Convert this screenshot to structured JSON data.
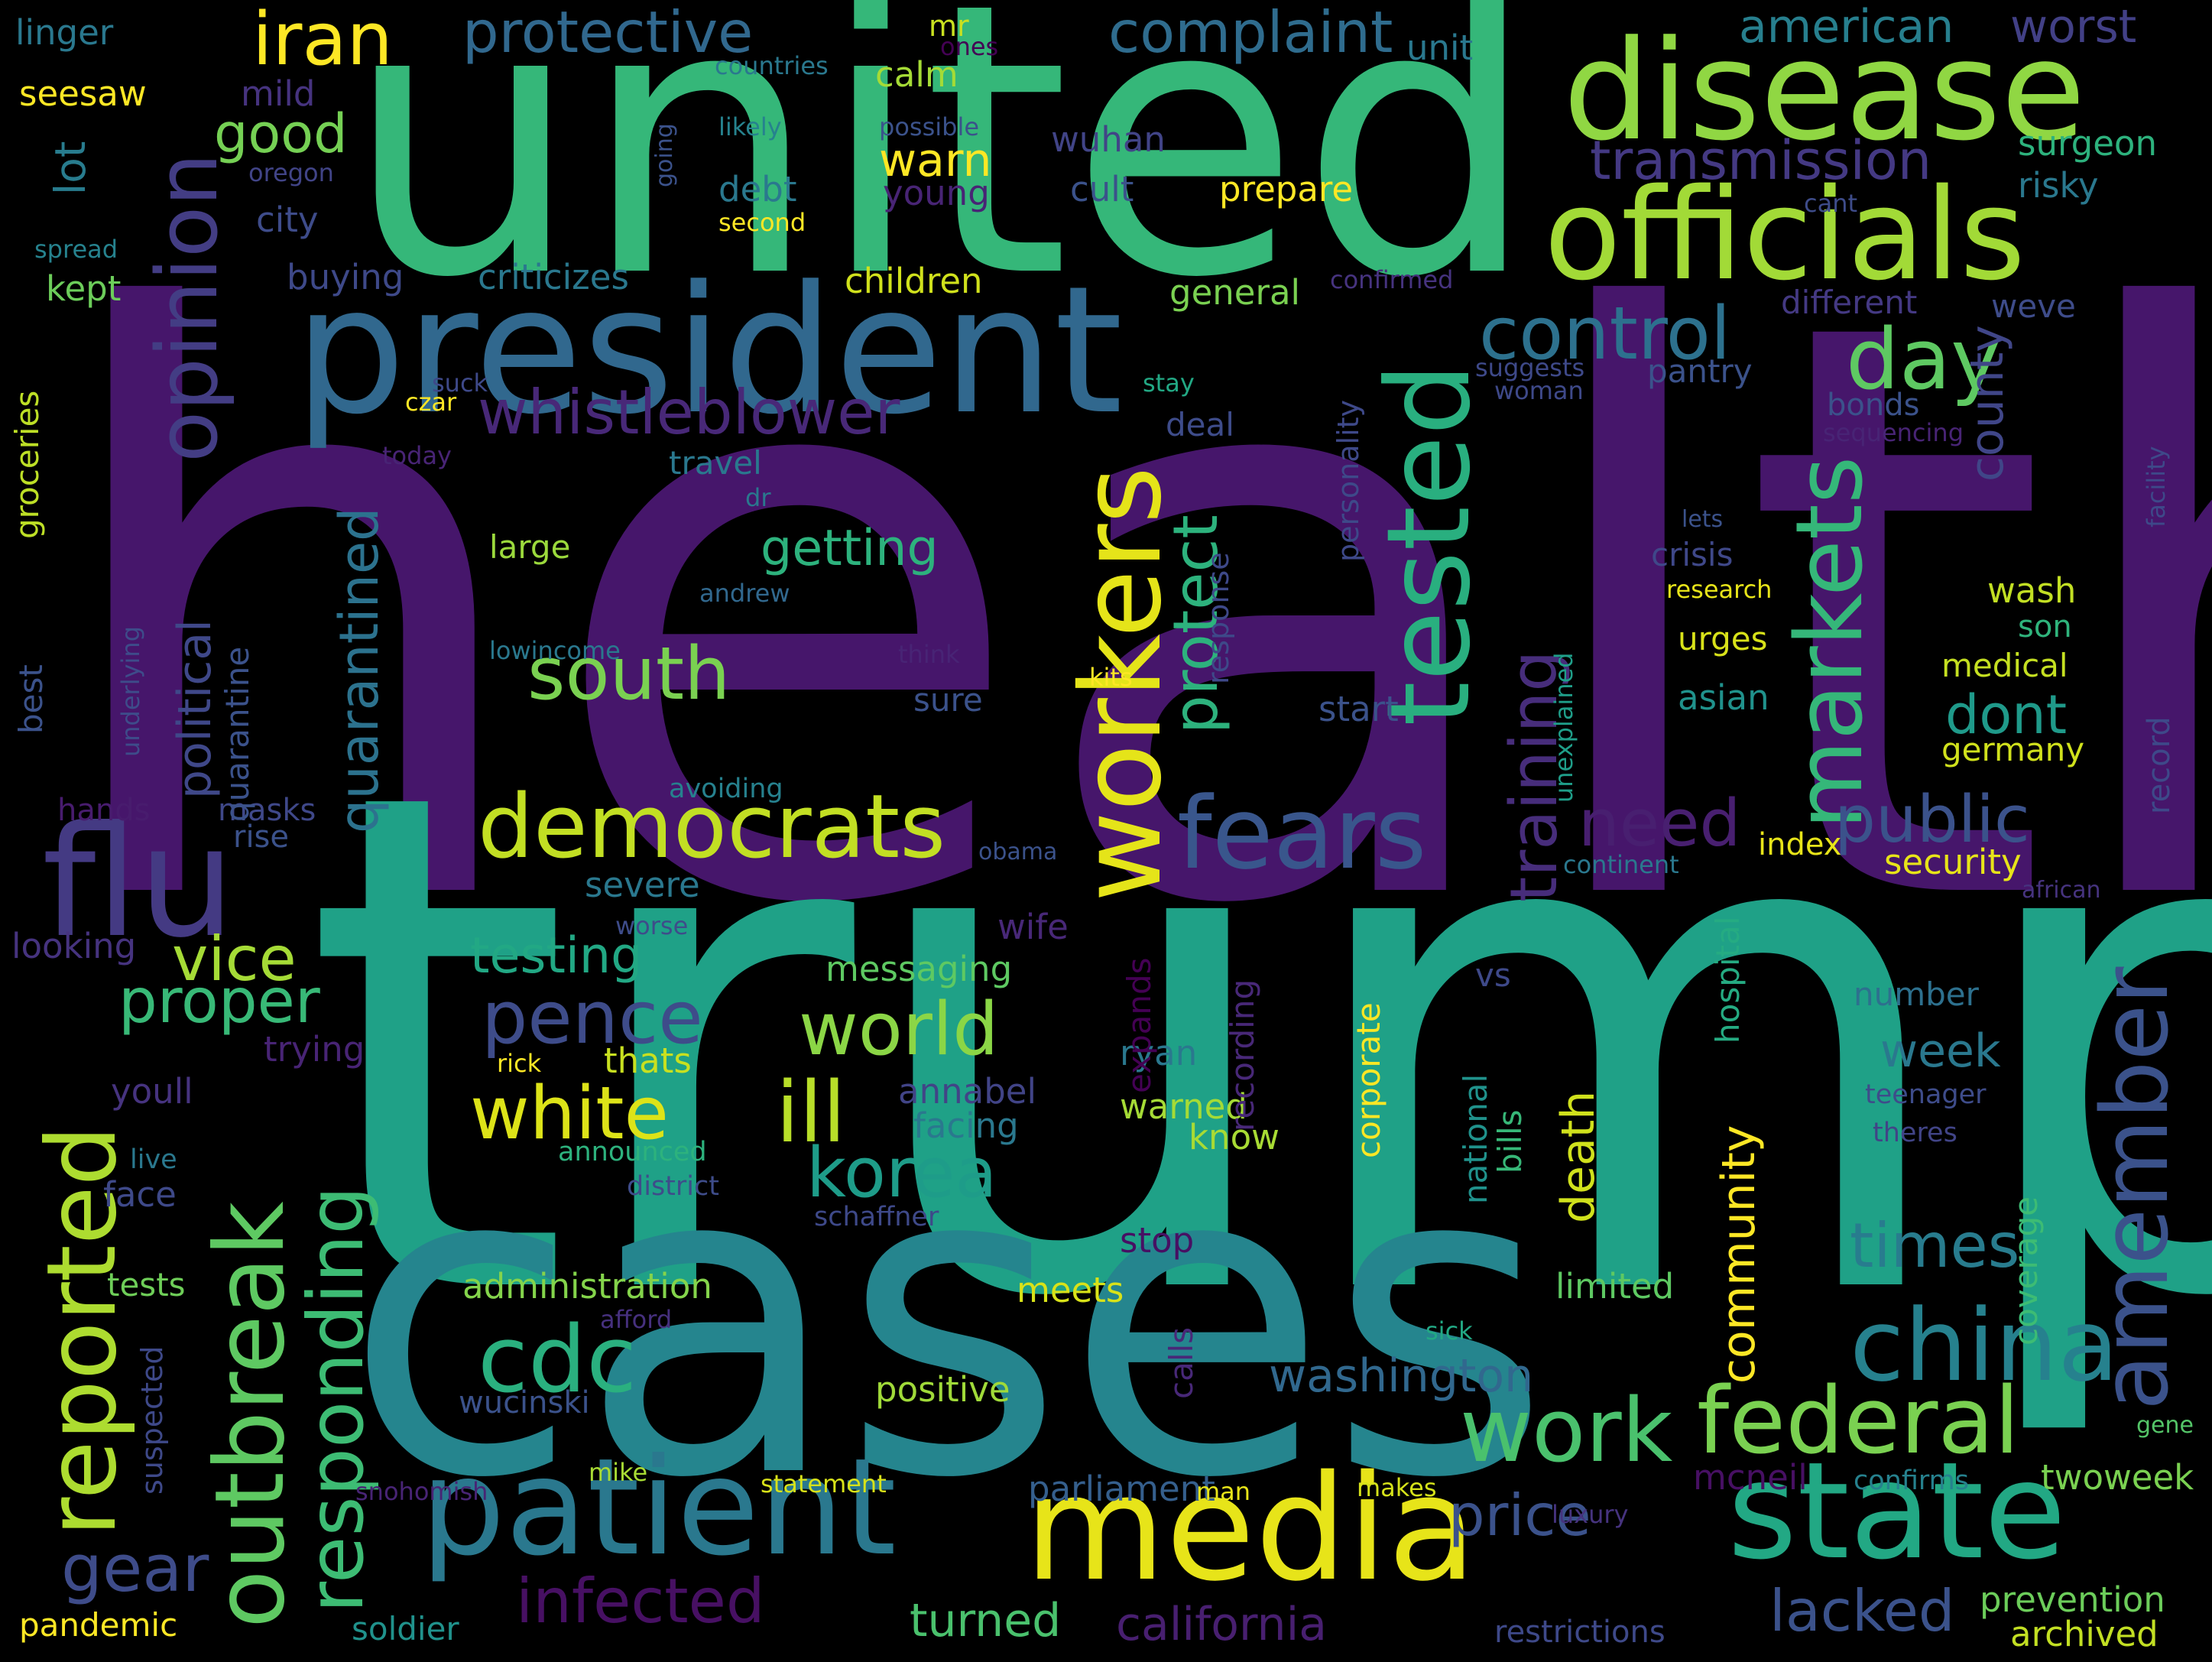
{
  "words": [
    {
      "text": "health",
      "color": "#46166b"
    },
    {
      "text": "trump",
      "color": "#1fa187"
    },
    {
      "text": "united",
      "color": "#35b779"
    },
    {
      "text": "cases",
      "color": "#25858e"
    },
    {
      "text": "president",
      "color": "#31688e"
    },
    {
      "text": "disease",
      "color": "#90d743"
    },
    {
      "text": "officials",
      "color": "#a2da37"
    },
    {
      "text": "media",
      "color": "#e7e419"
    },
    {
      "text": "patient",
      "color": "#2a788e"
    },
    {
      "text": "state",
      "color": "#22a884"
    },
    {
      "text": "workers",
      "color": "#e5e419"
    },
    {
      "text": "tested",
      "color": "#29af7f"
    },
    {
      "text": "markets",
      "color": "#35b779"
    },
    {
      "text": "opinion",
      "color": "#433d84"
    },
    {
      "text": "flu",
      "color": "#443a83"
    },
    {
      "text": "fears",
      "color": "#39568c"
    },
    {
      "text": "democrats",
      "color": "#c2df23"
    },
    {
      "text": "china",
      "color": "#26818e"
    },
    {
      "text": "federal",
      "color": "#7ad151"
    },
    {
      "text": "amember",
      "color": "#3b528b"
    },
    {
      "text": "outbreak",
      "color": "#5ec962"
    },
    {
      "text": "reported",
      "color": "#addc30"
    },
    {
      "text": "responding",
      "color": "#3dbc74"
    },
    {
      "text": "cdc",
      "color": "#2ab07f"
    },
    {
      "text": "iran",
      "color": "#fde725"
    },
    {
      "text": "protective",
      "color": "#31688e"
    },
    {
      "text": "complaint",
      "color": "#2f6c8e"
    },
    {
      "text": "control",
      "color": "#2d718e"
    },
    {
      "text": "day",
      "color": "#5ec962"
    },
    {
      "text": "whistleblower",
      "color": "#482878"
    },
    {
      "text": "pence",
      "color": "#3e4c8a"
    },
    {
      "text": "white",
      "color": "#dde318"
    },
    {
      "text": "ill",
      "color": "#b8de29"
    },
    {
      "text": "world",
      "color": "#8bd646"
    },
    {
      "text": "korea",
      "color": "#1e9c89"
    },
    {
      "text": "south",
      "color": "#7ad151"
    },
    {
      "text": "public",
      "color": "#3b528b"
    },
    {
      "text": "need",
      "color": "#481f70"
    },
    {
      "text": "training",
      "color": "#472d7b"
    },
    {
      "text": "work",
      "color": "#4ac16d"
    },
    {
      "text": "infected",
      "color": "#471063"
    },
    {
      "text": "gear",
      "color": "#3e4c8a"
    },
    {
      "text": "price",
      "color": "#3b528b"
    },
    {
      "text": "lacked",
      "color": "#3b528b"
    },
    {
      "text": "times",
      "color": "#287c8e"
    },
    {
      "text": "proper",
      "color": "#38b977"
    },
    {
      "text": "vice",
      "color": "#a5db36"
    },
    {
      "text": "quarantined",
      "color": "#2c728e"
    },
    {
      "text": "political",
      "color": "#3f4889"
    },
    {
      "text": "protect",
      "color": "#2db27d"
    },
    {
      "text": "getting",
      "color": "#2db27d"
    },
    {
      "text": "washington",
      "color": "#31688e"
    },
    {
      "text": "community",
      "color": "#fde725"
    },
    {
      "text": "death",
      "color": "#d0e11c"
    },
    {
      "text": "dont",
      "color": "#1f9a8a"
    },
    {
      "text": "week",
      "color": "#2a788e"
    },
    {
      "text": "testing",
      "color": "#22a884"
    },
    {
      "text": "county",
      "color": "#404688"
    },
    {
      "text": "american",
      "color": "#277f8e"
    },
    {
      "text": "worst",
      "color": "#424086"
    },
    {
      "text": "transmission",
      "color": "#443983"
    },
    {
      "text": "good",
      "color": "#75d054"
    },
    {
      "text": "warn",
      "color": "#fde725"
    },
    {
      "text": "lot",
      "color": "#287c8e"
    },
    {
      "text": "administration",
      "color": "#84d44b"
    },
    {
      "text": "turned",
      "color": "#4ac16d"
    },
    {
      "text": "california",
      "color": "#481f70"
    },
    {
      "text": "parliament",
      "color": "#355f8d"
    },
    {
      "text": "positive",
      "color": "#a0da39"
    },
    {
      "text": "wucinski",
      "color": "#3b528b"
    },
    {
      "text": "pandemic",
      "color": "#fde725"
    },
    {
      "text": "soldier",
      "color": "#20928c"
    },
    {
      "text": "restrictions",
      "color": "#3e4989"
    },
    {
      "text": "archived",
      "color": "#c2df23"
    },
    {
      "text": "prevention",
      "color": "#6ccd5a"
    },
    {
      "text": "twoweek",
      "color": "#7ad151"
    },
    {
      "text": "mcneil",
      "color": "#471063"
    },
    {
      "text": "confirms",
      "color": "#26818e"
    },
    {
      "text": "statement",
      "color": "#d8e219"
    },
    {
      "text": "mike",
      "color": "#a8db34"
    },
    {
      "text": "makes",
      "color": "#d5e21a"
    },
    {
      "text": "man",
      "color": "#e7e419"
    },
    {
      "text": "luxury",
      "color": "#46337f"
    },
    {
      "text": "snohomish",
      "color": "#482475"
    },
    {
      "text": "gene",
      "color": "#54c568"
    },
    {
      "text": "suspected",
      "color": "#3e4989"
    },
    {
      "text": "tests",
      "color": "#6ece58"
    },
    {
      "text": "afford",
      "color": "#46307e"
    },
    {
      "text": "sick",
      "color": "#22a884"
    },
    {
      "text": "limited",
      "color": "#5ec962"
    },
    {
      "text": "calls",
      "color": "#482878"
    },
    {
      "text": "meets",
      "color": "#d8e219"
    },
    {
      "text": "stop",
      "color": "#471063"
    },
    {
      "text": "schaffner",
      "color": "#3e4989"
    },
    {
      "text": "face",
      "color": "#3e4989"
    },
    {
      "text": "live",
      "color": "#2a788e"
    },
    {
      "text": "announced",
      "color": "#2db27d"
    },
    {
      "text": "district",
      "color": "#3e4c8a"
    },
    {
      "text": "youll",
      "color": "#46337f"
    },
    {
      "text": "trying",
      "color": "#482475"
    },
    {
      "text": "rick",
      "color": "#fde725"
    },
    {
      "text": "thats",
      "color": "#c8e020"
    },
    {
      "text": "annabel",
      "color": "#414487"
    },
    {
      "text": "facing",
      "color": "#2a788e"
    },
    {
      "text": "warned",
      "color": "#a5db36"
    },
    {
      "text": "know",
      "color": "#a8db34"
    },
    {
      "text": "ryan",
      "color": "#2a788e"
    },
    {
      "text": "recording",
      "color": "#482878"
    },
    {
      "text": "expands",
      "color": "#440154"
    },
    {
      "text": "corporate",
      "color": "#fde725"
    },
    {
      "text": "national",
      "color": "#20928c"
    },
    {
      "text": "bills",
      "color": "#37b878"
    },
    {
      "text": "vs",
      "color": "#3e4989"
    },
    {
      "text": "hospital",
      "color": "#25ab82"
    },
    {
      "text": "number",
      "color": "#2d708e"
    },
    {
      "text": "teenager",
      "color": "#3e4c8a"
    },
    {
      "text": "theres",
      "color": "#414487"
    },
    {
      "text": "coverage",
      "color": "#3dbc74"
    },
    {
      "text": "messaging",
      "color": "#5ec962"
    },
    {
      "text": "wife",
      "color": "#482878"
    },
    {
      "text": "severe",
      "color": "#2a788e"
    },
    {
      "text": "worse",
      "color": "#3e4c8a"
    },
    {
      "text": "looking",
      "color": "#46337f"
    },
    {
      "text": "hands",
      "color": "#481c6e"
    },
    {
      "text": "masks",
      "color": "#3f4889"
    },
    {
      "text": "rise",
      "color": "#3b528b"
    },
    {
      "text": "avoiding",
      "color": "#26818e"
    },
    {
      "text": "obama",
      "color": "#3b528b"
    },
    {
      "text": "continent",
      "color": "#2a788e"
    },
    {
      "text": "index",
      "color": "#e7e419"
    },
    {
      "text": "security",
      "color": "#e7e419"
    },
    {
      "text": "african",
      "color": "#46337f"
    },
    {
      "text": "germany",
      "color": "#d0e11c"
    },
    {
      "text": "record",
      "color": "#3e4989"
    },
    {
      "text": "medical",
      "color": "#c5e021"
    },
    {
      "text": "son",
      "color": "#2fb47c"
    },
    {
      "text": "wash",
      "color": "#c2df23"
    },
    {
      "text": "asian",
      "color": "#20928c"
    },
    {
      "text": "urges",
      "color": "#d8e219"
    },
    {
      "text": "crisis",
      "color": "#3f4889"
    },
    {
      "text": "lets",
      "color": "#3b528b"
    },
    {
      "text": "research",
      "color": "#e7e419"
    },
    {
      "text": "unexplained",
      "color": "#1f9e89"
    },
    {
      "text": "start",
      "color": "#3b528b"
    },
    {
      "text": "personality",
      "color": "#3e4989"
    },
    {
      "text": "response",
      "color": "#3e4989"
    },
    {
      "text": "kits",
      "color": "#fde725"
    },
    {
      "text": "think",
      "color": "#482475"
    },
    {
      "text": "sure",
      "color": "#3b528b"
    },
    {
      "text": "andrew",
      "color": "#31688e"
    },
    {
      "text": "dr",
      "color": "#2a788e"
    },
    {
      "text": "large",
      "color": "#9bd93c"
    },
    {
      "text": "lowincome",
      "color": "#2a788e"
    },
    {
      "text": "underlying",
      "color": "#3e4c8a"
    },
    {
      "text": "quarantine",
      "color": "#3b528b"
    },
    {
      "text": "best",
      "color": "#3b528b"
    },
    {
      "text": "groceries",
      "color": "#bddf26"
    },
    {
      "text": "travel",
      "color": "#2a788e"
    },
    {
      "text": "today",
      "color": "#482475"
    },
    {
      "text": "czar",
      "color": "#fde725"
    },
    {
      "text": "suck",
      "color": "#3e4989"
    },
    {
      "text": "stay",
      "color": "#22a884"
    },
    {
      "text": "deal",
      "color": "#3e4c8a"
    },
    {
      "text": "pantry",
      "color": "#3b528b"
    },
    {
      "text": "suggests",
      "color": "#3e4989"
    },
    {
      "text": "woman",
      "color": "#3e4989"
    },
    {
      "text": "bonds",
      "color": "#3b528b"
    },
    {
      "text": "sequencing",
      "color": "#482475"
    },
    {
      "text": "facility",
      "color": "#3e4989"
    },
    {
      "text": "different",
      "color": "#443983"
    },
    {
      "text": "weve",
      "color": "#3e4c8a"
    },
    {
      "text": "confirmed",
      "color": "#46337f"
    },
    {
      "text": "general",
      "color": "#7ad151"
    },
    {
      "text": "children",
      "color": "#d0e11c"
    },
    {
      "text": "criticizes",
      "color": "#2a788e"
    },
    {
      "text": "buying",
      "color": "#3e4989"
    },
    {
      "text": "kept",
      "color": "#6ccd5a"
    },
    {
      "text": "spread",
      "color": "#26828e"
    },
    {
      "text": "city",
      "color": "#3e4c8a"
    },
    {
      "text": "oregon",
      "color": "#414487"
    },
    {
      "text": "mild",
      "color": "#46337f"
    },
    {
      "text": "seesaw",
      "color": "#fde725"
    },
    {
      "text": "linger",
      "color": "#2a788e"
    },
    {
      "text": "mr",
      "color": "#c8e020"
    },
    {
      "text": "ones",
      "color": "#440154"
    },
    {
      "text": "countries",
      "color": "#2a788e"
    },
    {
      "text": "calm",
      "color": "#a5db36"
    },
    {
      "text": "possible",
      "color": "#3b528b"
    },
    {
      "text": "likely",
      "color": "#26828e"
    },
    {
      "text": "going",
      "color": "#3b528b"
    },
    {
      "text": "debt",
      "color": "#2a788e"
    },
    {
      "text": "second",
      "color": "#fde725"
    },
    {
      "text": "young",
      "color": "#482475"
    },
    {
      "text": "cult",
      "color": "#3b528b"
    },
    {
      "text": "prepare",
      "color": "#fde725"
    },
    {
      "text": "wuhan",
      "color": "#414487"
    },
    {
      "text": "unit",
      "color": "#2a788e"
    },
    {
      "text": "surgeon",
      "color": "#2db27d"
    },
    {
      "text": "risky",
      "color": "#2a788e"
    },
    {
      "text": "cant",
      "color": "#3e4c8a"
    }
  ]
}
